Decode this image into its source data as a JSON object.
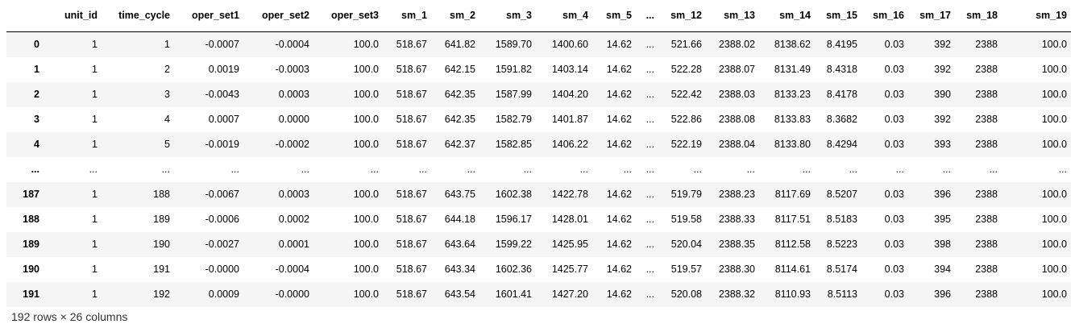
{
  "table": {
    "columns": [
      "",
      "unit_id",
      "time_cycle",
      "oper_set1",
      "oper_set2",
      "oper_set3",
      "sm_1",
      "sm_2",
      "sm_3",
      "sm_4",
      "sm_5",
      "...",
      "sm_12",
      "sm_13",
      "sm_14",
      "sm_15",
      "sm_16",
      "sm_17",
      "sm_18",
      "sm_19"
    ],
    "rows": [
      [
        "0",
        "1",
        "1",
        "-0.0007",
        "-0.0004",
        "100.0",
        "518.67",
        "641.82",
        "1589.70",
        "1400.60",
        "14.62",
        "...",
        "521.66",
        "2388.02",
        "8138.62",
        "8.4195",
        "0.03",
        "392",
        "2388",
        "100.0"
      ],
      [
        "1",
        "1",
        "2",
        "0.0019",
        "-0.0003",
        "100.0",
        "518.67",
        "642.15",
        "1591.82",
        "1403.14",
        "14.62",
        "...",
        "522.28",
        "2388.07",
        "8131.49",
        "8.4318",
        "0.03",
        "392",
        "2388",
        "100.0"
      ],
      [
        "2",
        "1",
        "3",
        "-0.0043",
        "0.0003",
        "100.0",
        "518.67",
        "642.35",
        "1587.99",
        "1404.20",
        "14.62",
        "...",
        "522.42",
        "2388.03",
        "8133.23",
        "8.4178",
        "0.03",
        "390",
        "2388",
        "100.0"
      ],
      [
        "3",
        "1",
        "4",
        "0.0007",
        "0.0000",
        "100.0",
        "518.67",
        "642.35",
        "1582.79",
        "1401.87",
        "14.62",
        "...",
        "522.86",
        "2388.08",
        "8133.83",
        "8.3682",
        "0.03",
        "392",
        "2388",
        "100.0"
      ],
      [
        "4",
        "1",
        "5",
        "-0.0019",
        "-0.0002",
        "100.0",
        "518.67",
        "642.37",
        "1582.85",
        "1406.22",
        "14.62",
        "...",
        "522.19",
        "2388.04",
        "8133.80",
        "8.4294",
        "0.03",
        "393",
        "2388",
        "100.0"
      ],
      [
        "...",
        "...",
        "...",
        "...",
        "...",
        "...",
        "...",
        "...",
        "...",
        "...",
        "...",
        "...",
        "...",
        "...",
        "...",
        "...",
        "...",
        "...",
        "...",
        "..."
      ],
      [
        "187",
        "1",
        "188",
        "-0.0067",
        "0.0003",
        "100.0",
        "518.67",
        "643.75",
        "1602.38",
        "1422.78",
        "14.62",
        "...",
        "519.79",
        "2388.23",
        "8117.69",
        "8.5207",
        "0.03",
        "396",
        "2388",
        "100.0"
      ],
      [
        "188",
        "1",
        "189",
        "-0.0006",
        "0.0002",
        "100.0",
        "518.67",
        "644.18",
        "1596.17",
        "1428.01",
        "14.62",
        "...",
        "519.58",
        "2388.33",
        "8117.51",
        "8.5183",
        "0.03",
        "395",
        "2388",
        "100.0"
      ],
      [
        "189",
        "1",
        "190",
        "-0.0027",
        "0.0001",
        "100.0",
        "518.67",
        "643.64",
        "1599.22",
        "1425.95",
        "14.62",
        "...",
        "520.04",
        "2388.35",
        "8112.58",
        "8.5223",
        "0.03",
        "398",
        "2388",
        "100.0"
      ],
      [
        "190",
        "1",
        "191",
        "-0.0000",
        "-0.0004",
        "100.0",
        "518.67",
        "643.34",
        "1602.36",
        "1425.77",
        "14.62",
        "...",
        "519.57",
        "2388.30",
        "8114.61",
        "8.5174",
        "0.03",
        "394",
        "2388",
        "100.0"
      ],
      [
        "191",
        "1",
        "192",
        "0.0009",
        "-0.0000",
        "100.0",
        "518.67",
        "643.54",
        "1601.41",
        "1427.20",
        "14.62",
        "...",
        "520.08",
        "2388.32",
        "8110.93",
        "8.5113",
        "0.03",
        "396",
        "2388",
        "100.0"
      ]
    ]
  },
  "footer": {
    "summary": "192 rows × 26 columns"
  }
}
